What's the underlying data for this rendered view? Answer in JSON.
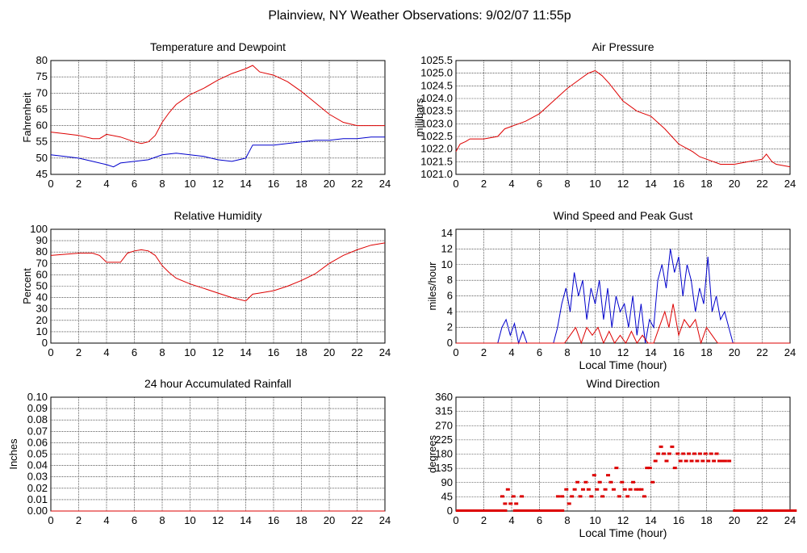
{
  "page": {
    "title": "Plainview, NY Weather Observations: 9/02/07 11:55p"
  },
  "colors": {
    "primary": "#dd0000",
    "secondary": "#0000cc",
    "grid": "#000000",
    "axis": "#000000"
  },
  "chart_data": [
    {
      "id": "temperature",
      "type": "line",
      "title": "Temperature and Dewpoint",
      "xlabel": "",
      "ylabel": "Fahrenheit",
      "xlim": [
        0,
        24
      ],
      "ylim": [
        45,
        80
      ],
      "xticks": [
        0,
        2,
        4,
        6,
        8,
        10,
        12,
        14,
        16,
        18,
        20,
        22,
        24
      ],
      "yticks": [
        45,
        50,
        55,
        60,
        65,
        70,
        75,
        80
      ],
      "ytick_labels": [
        "45",
        "50",
        "55",
        "60",
        "65",
        "70",
        "75",
        "80"
      ],
      "series": [
        {
          "color": "#dd0000",
          "x": [
            0,
            1,
            2,
            3,
            3.5,
            4,
            5,
            6,
            6.5,
            7,
            7.5,
            8,
            8.5,
            9,
            10,
            11,
            12,
            13,
            14,
            14.5,
            15,
            16,
            17,
            18,
            19,
            20,
            21,
            22,
            23,
            24
          ],
          "y": [
            58,
            57.5,
            57,
            56,
            56,
            57.3,
            56.5,
            55,
            54.5,
            55,
            57,
            61,
            64,
            66.5,
            69.5,
            71.5,
            74,
            76,
            77.5,
            78.5,
            76.5,
            75.5,
            73.5,
            70.5,
            67,
            63.5,
            61,
            60,
            60,
            60
          ]
        },
        {
          "color": "#0000cc",
          "x": [
            0,
            1,
            2,
            3,
            4,
            4.5,
            5,
            6,
            7,
            8,
            9,
            10,
            11,
            12,
            13,
            14,
            14.5,
            15,
            16,
            17,
            18,
            19,
            20,
            21,
            22,
            23,
            24
          ],
          "y": [
            51,
            50.5,
            50,
            49,
            48,
            47.3,
            48.5,
            49,
            49.5,
            51,
            51.5,
            51,
            50.5,
            49.5,
            49,
            50,
            54,
            54,
            54,
            54.5,
            55,
            55.5,
            55.5,
            56,
            56,
            56.5,
            56.5
          ]
        }
      ]
    },
    {
      "id": "pressure",
      "type": "line",
      "title": "Air Pressure",
      "xlabel": "",
      "ylabel": "millibars",
      "xlim": [
        0,
        24
      ],
      "ylim": [
        1021.0,
        1025.5
      ],
      "xticks": [
        0,
        2,
        4,
        6,
        8,
        10,
        12,
        14,
        16,
        18,
        20,
        22,
        24
      ],
      "yticks": [
        1021.0,
        1021.5,
        1022.0,
        1022.5,
        1023.0,
        1023.5,
        1024.0,
        1024.5,
        1025.0,
        1025.5
      ],
      "ytick_labels": [
        "1021.0",
        "1021.5",
        "1022.0",
        "1022.5",
        "1023.0",
        "1023.5",
        "1024.0",
        "1024.5",
        "1025.0",
        "1025.5"
      ],
      "series": [
        {
          "color": "#dd0000",
          "x": [
            0,
            0.3,
            0.7,
            1,
            2,
            3,
            3.5,
            4,
            5,
            6,
            7,
            8,
            9,
            9.5,
            10,
            10.5,
            11,
            12,
            13,
            14,
            15,
            16,
            17,
            17.5,
            18,
            18.5,
            19,
            20,
            21,
            22,
            22.3,
            22.7,
            23,
            24
          ],
          "y": [
            1021.9,
            1022.2,
            1022.3,
            1022.4,
            1022.4,
            1022.5,
            1022.8,
            1022.9,
            1023.1,
            1023.4,
            1023.9,
            1024.4,
            1024.8,
            1025.0,
            1025.1,
            1024.9,
            1024.6,
            1023.9,
            1023.5,
            1023.3,
            1022.8,
            1022.2,
            1021.9,
            1021.7,
            1021.6,
            1021.5,
            1021.4,
            1021.4,
            1021.5,
            1021.6,
            1021.8,
            1021.5,
            1021.4,
            1021.3
          ]
        }
      ]
    },
    {
      "id": "humidity",
      "type": "line",
      "title": "Relative Humidity",
      "xlabel": "",
      "ylabel": "Percent",
      "xlim": [
        0,
        24
      ],
      "ylim": [
        0,
        100
      ],
      "xticks": [
        0,
        2,
        4,
        6,
        8,
        10,
        12,
        14,
        16,
        18,
        20,
        22,
        24
      ],
      "yticks": [
        0,
        10,
        20,
        30,
        40,
        50,
        60,
        70,
        80,
        90,
        100
      ],
      "ytick_labels": [
        "0",
        "10",
        "20",
        "30",
        "40",
        "50",
        "60",
        "70",
        "80",
        "90",
        "100"
      ],
      "series": [
        {
          "color": "#dd0000",
          "x": [
            0,
            1,
            2,
            3,
            3.5,
            4,
            5,
            5.5,
            6,
            6.5,
            7,
            7.5,
            8,
            8.5,
            9,
            10,
            11,
            12,
            13,
            14,
            14.5,
            15,
            16,
            17,
            18,
            19,
            20,
            21,
            22,
            23,
            24
          ],
          "y": [
            77,
            78,
            79,
            79,
            77,
            71,
            71,
            79,
            81,
            82,
            81,
            77,
            68,
            62,
            57,
            52,
            48,
            44,
            40,
            37,
            43,
            44,
            46,
            50,
            55,
            61,
            70,
            77,
            82,
            86,
            88
          ]
        }
      ]
    },
    {
      "id": "wind-speed",
      "type": "line",
      "title": "Wind Speed and Peak Gust",
      "xlabel": "Local Time (hour)",
      "ylabel": "miles/hour",
      "xlim": [
        0,
        24
      ],
      "ylim": [
        0,
        14.5
      ],
      "xticks": [
        0,
        2,
        4,
        6,
        8,
        10,
        12,
        14,
        16,
        18,
        20,
        22,
        24
      ],
      "yticks": [
        0,
        2,
        4,
        6,
        8,
        10,
        12,
        14
      ],
      "ytick_labels": [
        "0",
        "2",
        "4",
        "6",
        "8",
        "10",
        "12",
        "14"
      ],
      "series": [
        {
          "color": "#0000cc",
          "x": [
            0,
            3,
            3.3,
            3.6,
            3.9,
            4.2,
            4.5,
            4.8,
            5.1,
            5.4,
            7,
            7.3,
            7.6,
            7.9,
            8.2,
            8.5,
            8.8,
            9.1,
            9.4,
            9.7,
            10,
            10.3,
            10.6,
            10.9,
            11.2,
            11.5,
            11.8,
            12.1,
            12.4,
            12.7,
            13,
            13.3,
            13.6,
            13.9,
            14.2,
            14.5,
            14.8,
            15.1,
            15.4,
            15.7,
            16,
            16.3,
            16.6,
            16.9,
            17.2,
            17.5,
            17.8,
            18.1,
            18.4,
            18.7,
            19,
            19.3,
            19.6,
            19.9,
            20.2,
            24
          ],
          "y": [
            0,
            0,
            2,
            3,
            1,
            2.5,
            0,
            1.5,
            0,
            0,
            0,
            2,
            5,
            7,
            4,
            9,
            6,
            8,
            3,
            7,
            5,
            8,
            3,
            7,
            2,
            6,
            4,
            5,
            2,
            6,
            1,
            5,
            0,
            3,
            2,
            8,
            10,
            7,
            12,
            9,
            11,
            6,
            10,
            8,
            4,
            7,
            5,
            11,
            4,
            6,
            3,
            4,
            2,
            0,
            0,
            0
          ]
        },
        {
          "color": "#dd0000",
          "x": [
            0,
            7.8,
            8.2,
            8.6,
            9,
            9.4,
            9.8,
            10.2,
            10.6,
            11,
            11.4,
            11.8,
            12.2,
            12.6,
            13,
            13.4,
            13.8,
            14.2,
            14.6,
            15,
            15.3,
            15.6,
            16,
            16.4,
            16.8,
            17.2,
            17.6,
            18,
            18.4,
            18.8,
            19.2,
            24
          ],
          "y": [
            0,
            0,
            1,
            2,
            0,
            2,
            1,
            2,
            0,
            1.5,
            0,
            1,
            0,
            1.5,
            0,
            1,
            0,
            0,
            2,
            4,
            2,
            5,
            1,
            3,
            2,
            3,
            0,
            2,
            1,
            0,
            0,
            0
          ]
        }
      ]
    },
    {
      "id": "rainfall",
      "type": "line",
      "title": "24 hour Accumulated Rainfall",
      "xlabel": "",
      "ylabel": "Inches",
      "xlim": [
        0,
        24
      ],
      "ylim": [
        0,
        0.1
      ],
      "xticks": [
        0,
        2,
        4,
        6,
        8,
        10,
        12,
        14,
        16,
        18,
        20,
        22,
        24
      ],
      "yticks": [
        0,
        0.01,
        0.02,
        0.03,
        0.04,
        0.05,
        0.06,
        0.07,
        0.08,
        0.09,
        0.1
      ],
      "ytick_labels": [
        "0.00",
        "0.01",
        "0.02",
        "0.03",
        "0.04",
        "0.05",
        "0.06",
        "0.07",
        "0.08",
        "0.09",
        "0.10"
      ],
      "series": [
        {
          "color": "#dd0000",
          "x": [
            0,
            24
          ],
          "y": [
            0,
            0
          ]
        }
      ]
    },
    {
      "id": "wind-direction",
      "type": "scatter",
      "title": "Wind Direction",
      "xlabel": "Local Time (hour)",
      "ylabel": "degrees",
      "xlim": [
        0,
        24
      ],
      "ylim": [
        0,
        360
      ],
      "xticks": [
        0,
        2,
        4,
        6,
        8,
        10,
        12,
        14,
        16,
        18,
        20,
        22,
        24
      ],
      "yticks": [
        0,
        45,
        90,
        135,
        180,
        225,
        270,
        315,
        360
      ],
      "ytick_labels": [
        "0",
        "45",
        "90",
        "135",
        "180",
        "225",
        "270",
        "315",
        "360"
      ],
      "series": [
        {
          "color": "#dd0000",
          "x": [
            3.3,
            3.5,
            3.7,
            3.9,
            4.1,
            4.3,
            4.7,
            7.3,
            7.6,
            7.9,
            8.1,
            8.3,
            8.5,
            8.7,
            8.9,
            9.1,
            9.3,
            9.5,
            9.7,
            9.9,
            10.1,
            10.3,
            10.5,
            10.7,
            10.9,
            11.1,
            11.3,
            11.5,
            11.7,
            11.9,
            12.1,
            12.3,
            12.5,
            12.7,
            12.9,
            13.1,
            13.3,
            13.5,
            13.7,
            13.9,
            14.1,
            14.3,
            14.5,
            14.7,
            14.9,
            15.1,
            15.3,
            15.5,
            15.7,
            15.9,
            16.1,
            16.3,
            16.5,
            16.7,
            16.9,
            17.1,
            17.3,
            17.5,
            17.7,
            17.9,
            18.1,
            18.3,
            18.5,
            18.7,
            18.9,
            19.1,
            19.3,
            19.6
          ],
          "y": [
            45,
            22,
            67,
            22,
            45,
            22,
            45,
            45,
            45,
            67,
            22,
            45,
            67,
            90,
            45,
            67,
            90,
            67,
            45,
            112,
            67,
            90,
            45,
            67,
            112,
            90,
            67,
            135,
            45,
            90,
            67,
            45,
            67,
            90,
            67,
            67,
            67,
            45,
            135,
            135,
            90,
            157,
            180,
            202,
            180,
            157,
            180,
            202,
            135,
            180,
            157,
            180,
            157,
            180,
            157,
            180,
            157,
            180,
            157,
            180,
            157,
            180,
            157,
            180,
            157,
            157,
            157,
            157
          ]
        },
        {
          "color": "#dd0000",
          "mode": "band",
          "x": [
            0,
            0.4,
            0.8,
            1.2,
            1.6,
            2,
            2.4,
            2.8,
            3.1,
            4.1,
            4.5,
            4.9,
            5.3,
            5.7,
            6.1,
            6.5,
            6.9,
            7.2,
            19.9,
            20.3,
            20.7,
            21.1,
            21.5,
            21.9,
            22.3,
            22.7,
            23.1,
            23.5,
            23.9
          ],
          "y": [
            0,
            0,
            0,
            0,
            0,
            0,
            0,
            0,
            0,
            0,
            0,
            0,
            0,
            0,
            0,
            0,
            0,
            0,
            0,
            0,
            0,
            0,
            0,
            0,
            0,
            0,
            0,
            0,
            0
          ]
        }
      ]
    }
  ]
}
